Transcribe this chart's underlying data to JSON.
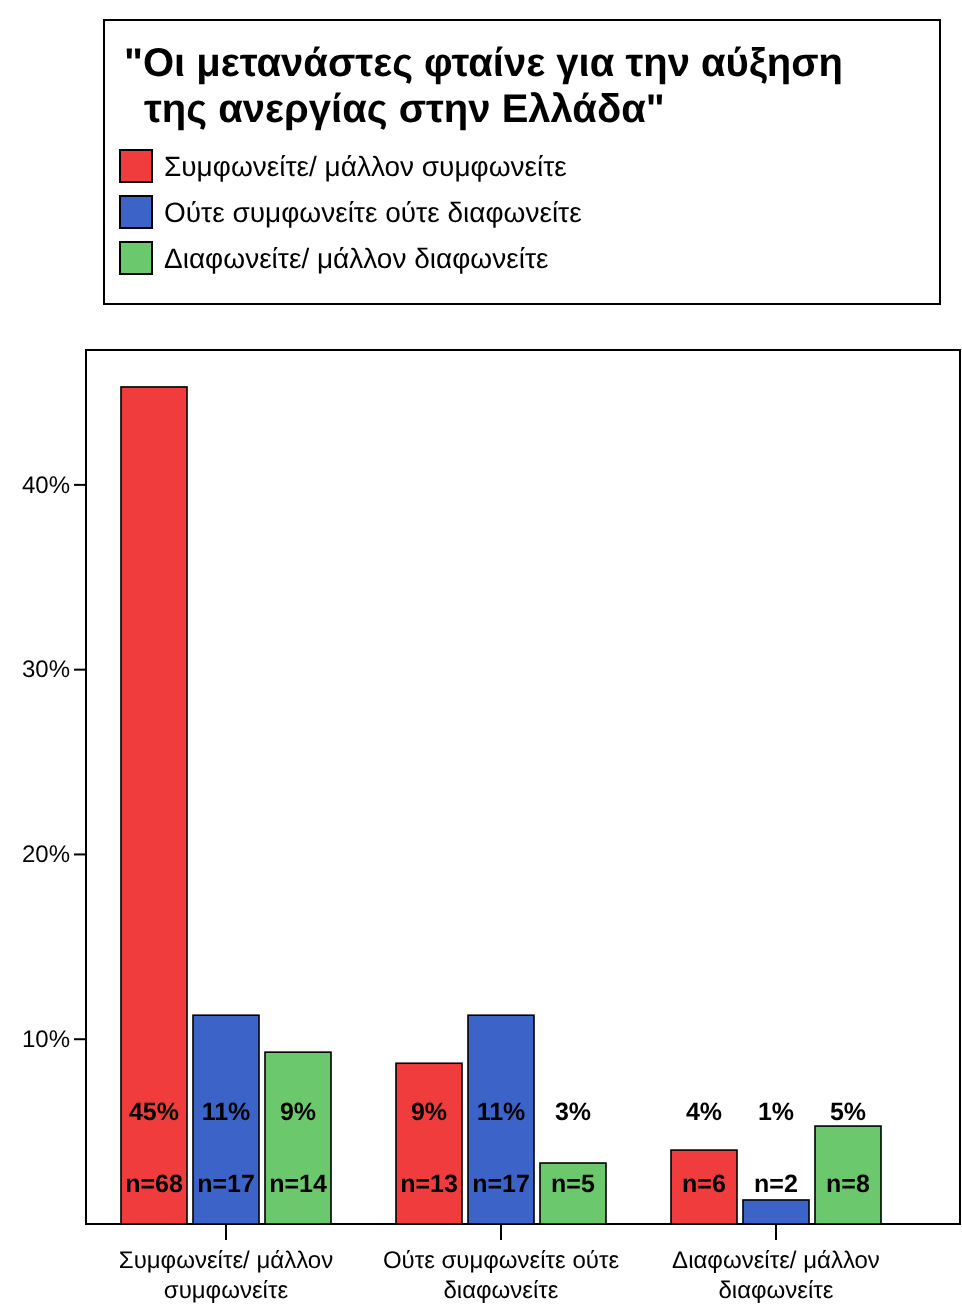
{
  "chart_data": {
    "type": "bar",
    "legend_title": "\"Οι μετανάστες φταίνε για την αύξηση της ανεργίας στην Ελλάδα\"",
    "legend": "top",
    "categories": [
      "Συμφωνείτε/ μάλλον συμφωνείτε",
      "Ούτε συμφωνείτε ούτε διαφωνείτε",
      "Διαφωνείτε/ μάλλον διαφωνείτε"
    ],
    "series": [
      {
        "name": "Συμφωνείτε/ μάλλον συμφωνείτε",
        "color": "#f03c3c",
        "values": [
          45.3,
          8.7,
          4
        ],
        "value_labels": [
          "45%\nn=68",
          "9%\nn=13",
          "4%\nn=6"
        ]
      },
      {
        "name": "Ούτε συμφωνείτε ούτε διαφωνείτε",
        "color": "#3c64c8",
        "values": [
          11.3,
          11.3,
          1.3
        ],
        "value_labels": [
          "11%\nn=17",
          "11%\nn=17",
          "1%\nn=2"
        ]
      },
      {
        "name": "Διαφωνείτε/ μάλλον διαφωνείτε",
        "color": "#6cc86c",
        "values": [
          9.3,
          3.3,
          5.3
        ],
        "value_labels": [
          "9%\nn=14",
          "3%\nn=5",
          "5%\nn=8"
        ]
      }
    ],
    "ylim": [
      0,
      47.3
    ],
    "yticks": [
      {
        "value": 10,
        "label": "10%"
      },
      {
        "value": 20,
        "label": "20%"
      },
      {
        "value": 30,
        "label": "30%"
      },
      {
        "value": 40,
        "label": "40%"
      }
    ],
    "grid": false
  }
}
